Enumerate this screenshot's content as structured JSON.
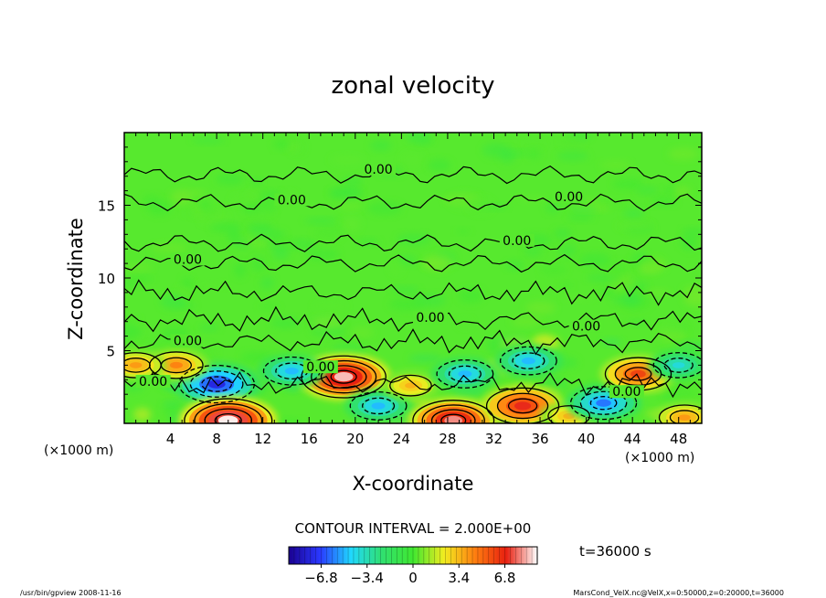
{
  "chart_data": {
    "type": "heatmap",
    "title": "zonal velocity",
    "xlabel": "X-coordinate",
    "ylabel": "Z-coordinate",
    "x_unit_left": "(×1000 m)",
    "x_unit_right": "(×1000 m)",
    "x_ticks": [
      "4",
      "8",
      "12",
      "16",
      "20",
      "24",
      "28",
      "32",
      "36",
      "40",
      "44",
      "48"
    ],
    "x_tick_values": [
      4,
      8,
      12,
      16,
      20,
      24,
      28,
      32,
      36,
      40,
      44,
      48
    ],
    "y_ticks": [
      "5",
      "10",
      "15"
    ],
    "y_tick_values": [
      5,
      10,
      15
    ],
    "xlim": [
      0,
      50
    ],
    "ylim": [
      0,
      20
    ],
    "contour_interval_label": "CONTOUR INTERVAL = 2.000E+00",
    "time_label": "t=36000 s",
    "colorbar": {
      "range": [
        -9.2,
        9.2
      ],
      "tick_labels": [
        "−6.8",
        "−3.4",
        "0",
        "3.4",
        "6.8"
      ],
      "tick_values": [
        -6.8,
        -3.4,
        0,
        3.4,
        6.8
      ],
      "stops": [
        "#1a0090",
        "#2a38ff",
        "#20d8ff",
        "#30e070",
        "#40e830",
        "#f2ec20",
        "#ff7e10",
        "#e82010",
        "#ffffff"
      ]
    },
    "contour_labels": [
      {
        "text": "0.00",
        "x": 22,
        "z": 17.3
      },
      {
        "text": "0.00",
        "x": 14.5,
        "z": 15.2
      },
      {
        "text": "0.00",
        "x": 38.5,
        "z": 15.4
      },
      {
        "text": "0.00",
        "x": 34,
        "z": 12.4
      },
      {
        "text": "0.00",
        "x": 5.5,
        "z": 11.1
      },
      {
        "text": "0.00",
        "x": 26.5,
        "z": 7.1
      },
      {
        "text": "0.00",
        "x": 5.5,
        "z": 5.5
      },
      {
        "text": "0.00",
        "x": 2.5,
        "z": 2.7
      },
      {
        "text": "0.00",
        "x": 17,
        "z": 3.7
      },
      {
        "text": "0.00",
        "x": 40,
        "z": 6.5
      },
      {
        "text": "0.00",
        "x": 43.5,
        "z": 2.0
      }
    ],
    "features": [
      {
        "x": 8,
        "z": 2.7,
        "value": -7.5
      },
      {
        "x": 4.5,
        "z": 4.0,
        "value": 4.5
      },
      {
        "x": 1,
        "z": 4.0,
        "value": 4.0
      },
      {
        "x": 9,
        "z": 0.2,
        "value": 9.0
      },
      {
        "x": 19,
        "z": 3.2,
        "value": 8.5
      },
      {
        "x": 14.5,
        "z": 3.6,
        "value": -5.0
      },
      {
        "x": 22,
        "z": 1.2,
        "value": -5.0
      },
      {
        "x": 24.8,
        "z": 2.6,
        "value": 3.5
      },
      {
        "x": 28.5,
        "z": 0.2,
        "value": 8.0
      },
      {
        "x": 29.5,
        "z": 3.4,
        "value": -5.0
      },
      {
        "x": 34.5,
        "z": 1.2,
        "value": 7.0
      },
      {
        "x": 35,
        "z": 4.3,
        "value": -5.0
      },
      {
        "x": 38.5,
        "z": 0.5,
        "value": 3.5
      },
      {
        "x": 41.5,
        "z": 1.4,
        "value": -6.0
      },
      {
        "x": 44.5,
        "z": 3.4,
        "value": 6.0
      },
      {
        "x": 48,
        "z": 4.0,
        "value": -4.0
      },
      {
        "x": 48.5,
        "z": 0.4,
        "value": 4.0
      }
    ]
  },
  "footer": {
    "left": "/usr/bin/gpview   2008-11-16",
    "right": "MarsCond_VelX.nc@VelX,x=0:50000,z=0:20000,t=36000"
  }
}
